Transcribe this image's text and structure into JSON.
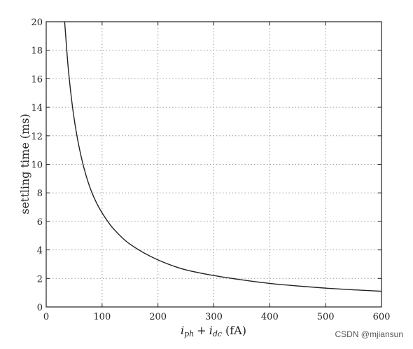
{
  "chart_data": {
    "type": "line",
    "title": "",
    "xlabel": "i_ph + i_dc (fA)",
    "xlabel_parts": {
      "i1": "i",
      "s1": "ph",
      "op": "+",
      "i2": "i",
      "s2": "dc",
      "unit": "(fA)"
    },
    "ylabel": "settling time (ms)",
    "xlim": [
      0,
      600
    ],
    "ylim": [
      0,
      20
    ],
    "xticks": [
      0,
      100,
      200,
      300,
      400,
      500,
      600
    ],
    "yticks": [
      0,
      2,
      4,
      6,
      8,
      10,
      12,
      14,
      16,
      18,
      20
    ],
    "xtick_labels": [
      "0",
      "100",
      "200",
      "300",
      "400",
      "500",
      "600"
    ],
    "ytick_labels": [
      "0",
      "2",
      "4",
      "6",
      "8",
      "10",
      "12",
      "14",
      "16",
      "18",
      "20"
    ],
    "grid": true,
    "series": [
      {
        "x": [
          33,
          40,
          50,
          60,
          70,
          80,
          90,
          100,
          120,
          150,
          200,
          250,
          300,
          350,
          400,
          450,
          500,
          550,
          600
        ],
        "y": [
          20,
          16.5,
          13.2,
          11,
          9.4,
          8.2,
          7.3,
          6.6,
          5.5,
          4.4,
          3.3,
          2.6,
          2.2,
          1.9,
          1.65,
          1.47,
          1.32,
          1.2,
          1.1
        ]
      }
    ]
  },
  "watermark": "CSDN @mjiansun"
}
